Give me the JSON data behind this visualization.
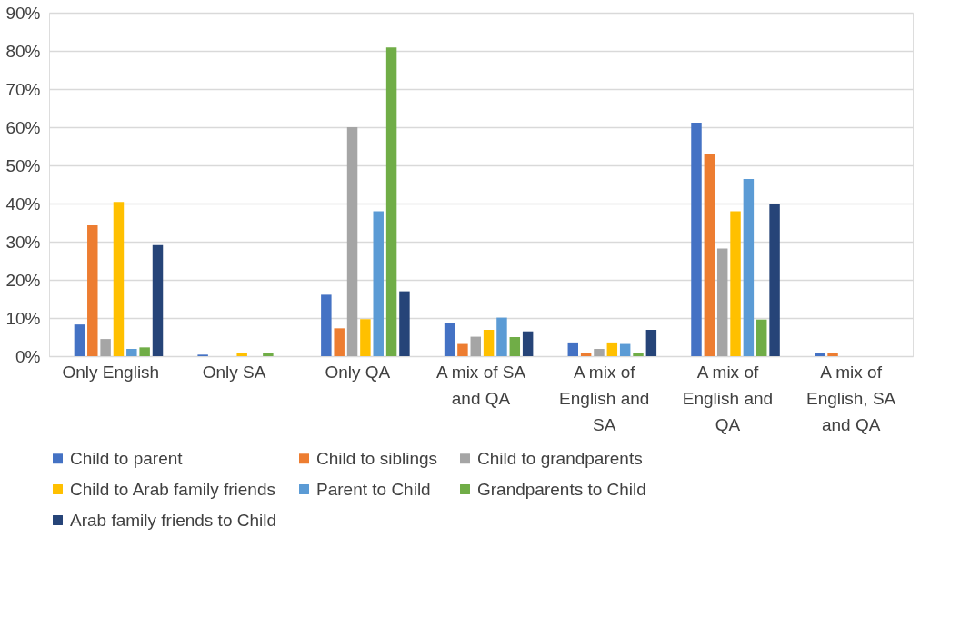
{
  "chart_data": {
    "type": "bar",
    "categories": [
      "Only English",
      "Only SA",
      "Only QA",
      "A mix of SA and QA",
      "A mix of English and SA",
      "A mix of English and QA",
      "A mix of English, SA and QA"
    ],
    "series": [
      {
        "name": "Child to parent",
        "color": "#4472c4",
        "values": [
          8.3,
          0.4,
          16.1,
          8.8,
          3.6,
          61.2,
          0.9
        ]
      },
      {
        "name": "Child to siblings",
        "color": "#ed7d31",
        "values": [
          34.3,
          0,
          7.3,
          3.2,
          0.9,
          53,
          0.9
        ]
      },
      {
        "name": "Child to grandparents",
        "color": "#a5a5a5",
        "values": [
          4.5,
          0,
          60,
          5.1,
          1.9,
          28.2,
          0
        ]
      },
      {
        "name": "Child to Arab family friends",
        "color": "#ffc000",
        "values": [
          40.4,
          0.9,
          9.7,
          6.9,
          3.6,
          38,
          0
        ]
      },
      {
        "name": "Parent to Child",
        "color": "#5b9bd5",
        "values": [
          1.9,
          0,
          38,
          10.1,
          3.2,
          46.4,
          0
        ]
      },
      {
        "name": "Grandparents to Child",
        "color": "#70ad47",
        "values": [
          2.3,
          0.9,
          80.9,
          5,
          0.9,
          9.6,
          0
        ]
      },
      {
        "name": "Arab family friends to Child",
        "color": "#264478",
        "values": [
          29.1,
          0,
          17,
          6.5,
          6.9,
          40,
          0
        ]
      }
    ],
    "ylim": [
      0,
      90
    ],
    "yticks": [
      {
        "value": 0,
        "label": "0%"
      },
      {
        "value": 10,
        "label": "10%"
      },
      {
        "value": 20,
        "label": "20%"
      },
      {
        "value": 30,
        "label": "30%"
      },
      {
        "value": 40,
        "label": "40%"
      },
      {
        "value": 50,
        "label": "50%"
      },
      {
        "value": 60,
        "label": "60%"
      },
      {
        "value": 70,
        "label": "70%"
      },
      {
        "value": 80,
        "label": "80%"
      },
      {
        "value": 90,
        "label": "90%"
      }
    ],
    "grid": "y",
    "legend": "bottom"
  }
}
